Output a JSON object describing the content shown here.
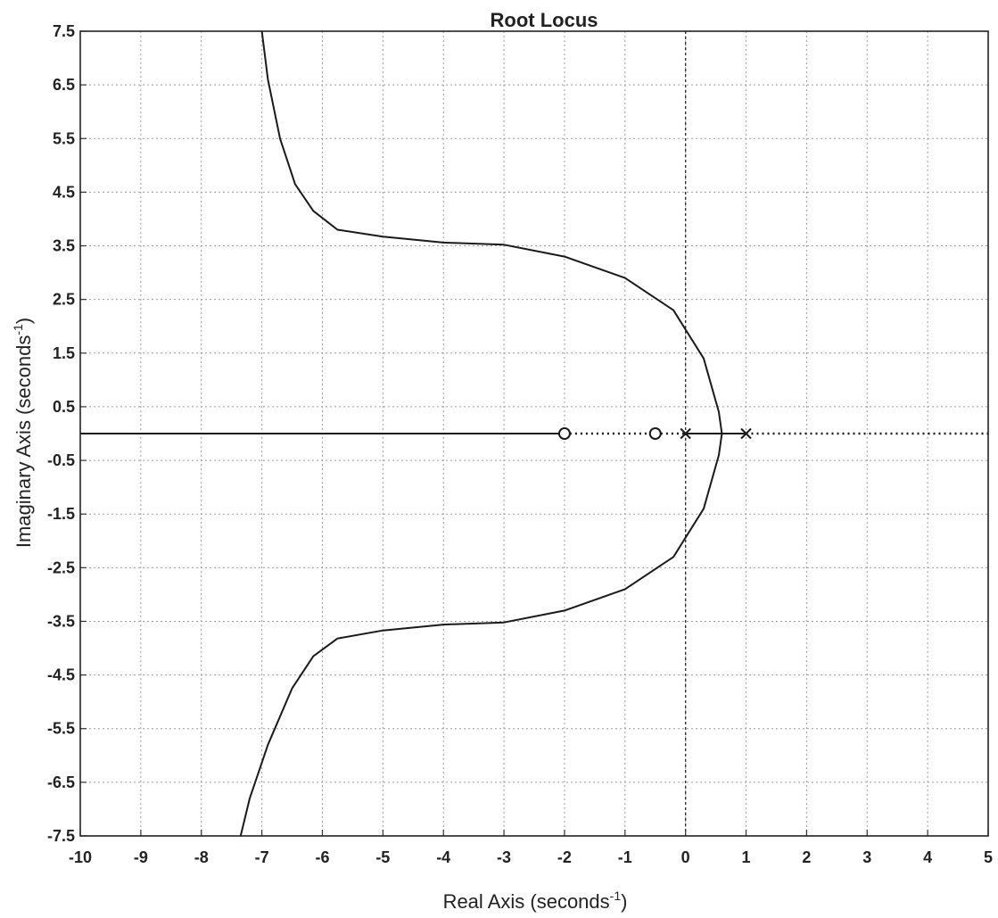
{
  "chart_data": {
    "type": "line",
    "title": "Root Locus",
    "xlabel": {
      "text": "Real Axis (seconds",
      "sup": "-1",
      "close": ")"
    },
    "ylabel": {
      "text": "Imaginary Axis (seconds",
      "sup": "-1",
      "close": ")"
    },
    "xlim": [
      -10,
      5
    ],
    "ylim": [
      -7.5,
      7.5
    ],
    "xticks": [
      "-10",
      "-9",
      "-8",
      "-7",
      "-6",
      "-5",
      "-4",
      "-3",
      "-2",
      "-1",
      "0",
      "1",
      "2",
      "3",
      "4",
      "5"
    ],
    "yticks": [
      "7.5",
      "6.5",
      "5.5",
      "4.5",
      "3.5",
      "2.5",
      "1.5",
      "0.5",
      "-0.5",
      "-1.5",
      "-2.5",
      "-3.5",
      "-4.5",
      "-5.5",
      "-6.5",
      "-7.5"
    ],
    "grid": true,
    "series": [
      {
        "style": "solid",
        "points": [
          [
            -7.0,
            7.5
          ],
          [
            -6.9,
            6.6
          ],
          [
            -6.7,
            5.5
          ],
          [
            -6.45,
            4.65
          ],
          [
            -6.15,
            4.15
          ],
          [
            -5.75,
            3.8
          ],
          [
            -5.0,
            3.67
          ],
          [
            -4.0,
            3.56
          ],
          [
            -3.0,
            3.52
          ],
          [
            -2.0,
            3.3
          ],
          [
            -1.0,
            2.9
          ],
          [
            -0.2,
            2.3
          ],
          [
            0.3,
            1.4
          ],
          [
            0.55,
            0.4
          ],
          [
            0.6,
            0.0
          ]
        ]
      },
      {
        "style": "solid",
        "points": [
          [
            0.6,
            0.0
          ],
          [
            0.55,
            -0.4
          ],
          [
            0.3,
            -1.4
          ],
          [
            -0.2,
            -2.3
          ],
          [
            -1.0,
            -2.9
          ],
          [
            -2.0,
            -3.3
          ],
          [
            -3.0,
            -3.52
          ],
          [
            -4.0,
            -3.56
          ],
          [
            -5.0,
            -3.67
          ],
          [
            -5.75,
            -3.82
          ],
          [
            -6.15,
            -4.15
          ],
          [
            -6.5,
            -4.75
          ],
          [
            -6.9,
            -5.8
          ],
          [
            -7.2,
            -6.8
          ],
          [
            -7.35,
            -7.5
          ]
        ]
      },
      {
        "style": "solid",
        "points": [
          [
            -10,
            0
          ],
          [
            -2,
            0
          ]
        ]
      },
      {
        "style": "dotted",
        "points": [
          [
            -2,
            0
          ],
          [
            0,
            0
          ]
        ]
      },
      {
        "style": "solid",
        "points": [
          [
            0,
            0
          ],
          [
            1,
            0
          ]
        ]
      },
      {
        "style": "dotted",
        "points": [
          [
            1,
            0
          ],
          [
            5,
            0
          ]
        ]
      }
    ],
    "zeros": [
      [
        -2,
        0
      ],
      [
        -0.5,
        0
      ]
    ],
    "poles": [
      [
        0,
        0
      ],
      [
        1,
        0
      ]
    ]
  }
}
